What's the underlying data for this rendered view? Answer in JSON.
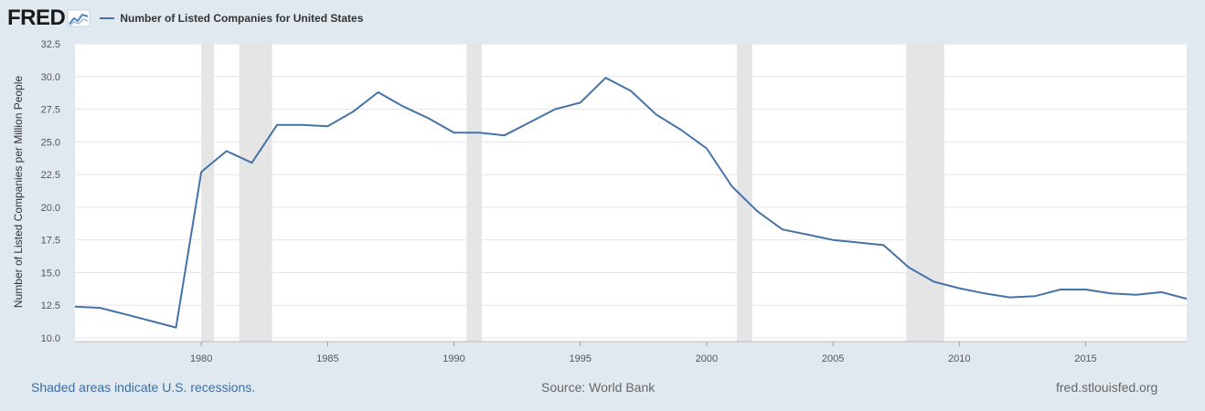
{
  "header": {
    "logo": "FRED",
    "logo_icon": "trend-chart-icon"
  },
  "colors": {
    "background": "#e1e9f0",
    "plot_background": "#ffffff",
    "series_line": "#4572a7",
    "recession_band": "#e5e5e5",
    "gridline": "#e6e6e6"
  },
  "footer": {
    "note": "Shaded areas indicate U.S. recessions.",
    "source": "Source: World Bank",
    "site": "fred.stlouisfed.org"
  },
  "chart_data": {
    "type": "line",
    "title": "",
    "xlabel": "",
    "ylabel": "Number of Listed Companies per Million People",
    "xlim": [
      1975,
      2019
    ],
    "ylim": [
      10.0,
      32.5
    ],
    "y_ticks": [
      "10.0",
      "12.5",
      "15.0",
      "17.5",
      "20.0",
      "22.5",
      "25.0",
      "27.5",
      "30.0",
      "32.5"
    ],
    "x_ticks": [
      "1980",
      "1985",
      "1990",
      "1995",
      "2000",
      "2005",
      "2010",
      "2015"
    ],
    "grid": true,
    "legend_placement": "top-left",
    "recessions": [
      [
        1980.0,
        1980.5
      ],
      [
        1981.5,
        1982.8
      ],
      [
        1990.5,
        1991.1
      ],
      [
        2001.2,
        2001.8
      ],
      [
        2007.9,
        2009.4
      ]
    ],
    "series": [
      {
        "name": "Number of Listed Companies for United States",
        "x": [
          1975,
          1976,
          1977,
          1978,
          1979,
          1980,
          1981,
          1982,
          1983,
          1984,
          1985,
          1986,
          1987,
          1988,
          1989,
          1990,
          1991,
          1992,
          1993,
          1994,
          1995,
          1996,
          1997,
          1998,
          1999,
          2000,
          2001,
          2002,
          2003,
          2004,
          2005,
          2006,
          2007,
          2008,
          2009,
          2010,
          2011,
          2012,
          2013,
          2014,
          2015,
          2016,
          2017,
          2018,
          2019
        ],
        "y": [
          12.4,
          12.3,
          11.8,
          11.3,
          10.8,
          22.7,
          24.3,
          23.4,
          26.3,
          26.3,
          26.2,
          27.3,
          28.8,
          27.7,
          26.8,
          25.7,
          25.7,
          25.5,
          26.5,
          27.5,
          28.0,
          29.9,
          28.9,
          27.1,
          25.9,
          24.5,
          21.6,
          19.7,
          18.3,
          17.9,
          17.5,
          17.3,
          17.1,
          15.4,
          14.3,
          13.8,
          13.4,
          13.1,
          13.2,
          13.7,
          13.7,
          13.4,
          13.3,
          13.5,
          13.0
        ]
      }
    ]
  }
}
